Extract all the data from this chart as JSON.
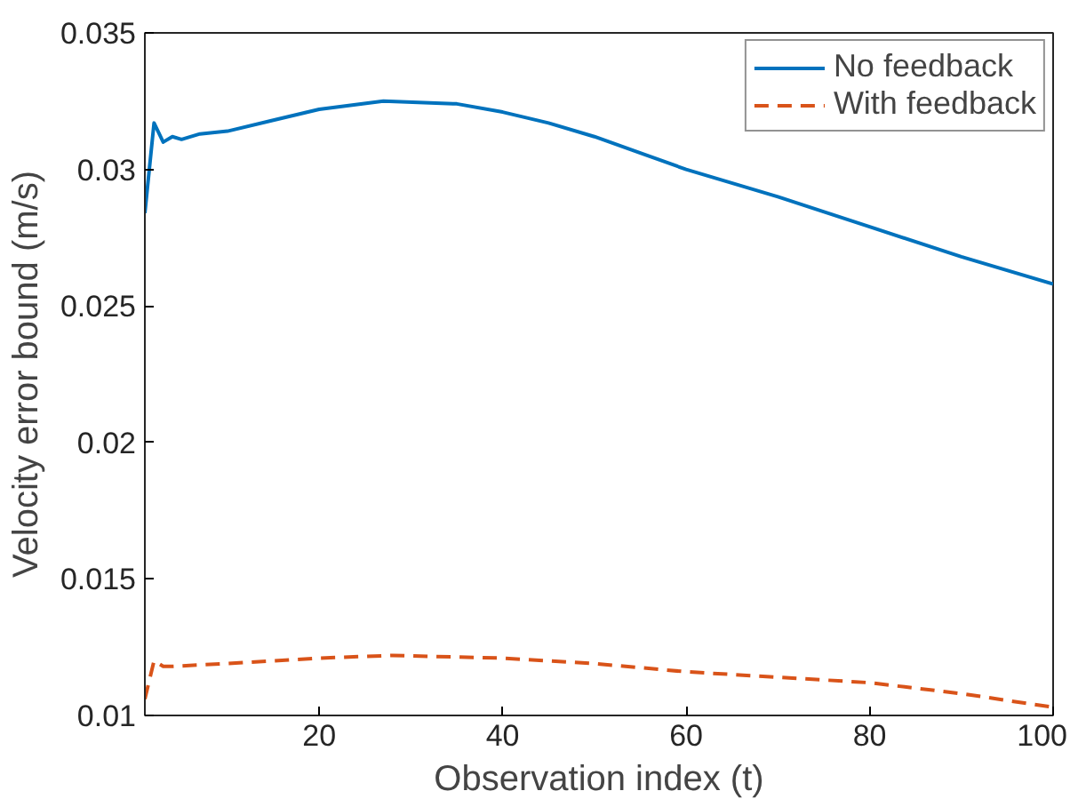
{
  "chart_data": {
    "type": "line",
    "xlabel": "Observation index (t)",
    "ylabel": "Velocity error bound (m/s)",
    "xlim": [
      1,
      100
    ],
    "ylim": [
      0.01,
      0.035
    ],
    "xticks": [
      20,
      40,
      60,
      80,
      100
    ],
    "yticks": [
      {
        "value": 0.01,
        "label": "0.01"
      },
      {
        "value": 0.015,
        "label": "0.015"
      },
      {
        "value": 0.02,
        "label": "0.02"
      },
      {
        "value": 0.025,
        "label": "0.025"
      },
      {
        "value": 0.03,
        "label": "0.03"
      },
      {
        "value": 0.035,
        "label": "0.035"
      }
    ],
    "grid": false,
    "legend": "top right",
    "series": [
      {
        "name": "No feedback",
        "color": "#0072bd",
        "line_style": "solid",
        "x": [
          1,
          2,
          3,
          4,
          5,
          7,
          10,
          15,
          20,
          27,
          35,
          40,
          45,
          50,
          55,
          60,
          70,
          80,
          90,
          100
        ],
        "values": [
          0.0284,
          0.0317,
          0.031,
          0.0312,
          0.0311,
          0.0313,
          0.0314,
          0.0318,
          0.0322,
          0.0325,
          0.0324,
          0.0321,
          0.0317,
          0.0312,
          0.0306,
          0.03,
          0.029,
          0.0279,
          0.0268,
          0.0258
        ]
      },
      {
        "name": "With feedback",
        "color": "#d95319",
        "line_style": "dashed",
        "x": [
          1,
          2,
          3,
          4,
          10,
          20,
          28,
          40,
          50,
          60,
          70,
          80,
          90,
          100
        ],
        "values": [
          0.0106,
          0.012,
          0.0118,
          0.0118,
          0.0119,
          0.0121,
          0.0122,
          0.0121,
          0.0119,
          0.0116,
          0.0114,
          0.0112,
          0.0108,
          0.0103
        ]
      }
    ]
  }
}
